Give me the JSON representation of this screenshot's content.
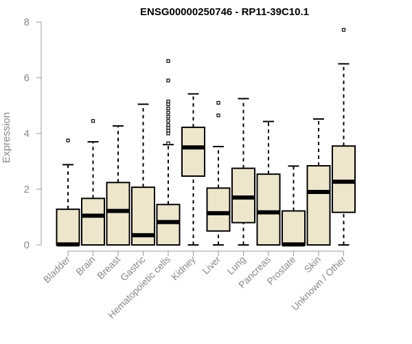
{
  "chart_data": {
    "type": "boxplot",
    "title": "ENSG00000250746 - RP11-39C10.1",
    "ylabel": "Expression",
    "xlabel": "",
    "ylim": [
      0,
      8
    ],
    "yticks": [
      0,
      2,
      4,
      6,
      8
    ],
    "box_fill": "#ede6cc",
    "categories": [
      "Bladder",
      "Brain",
      "Breast",
      "Gastric",
      "Hematopoietic cells",
      "Kidney",
      "Liver",
      "Lung",
      "Pancreas",
      "Prostate",
      "Skin",
      "Unknown / Other"
    ],
    "boxes": [
      {
        "whislo": 0,
        "q1": 0,
        "med": 0.02,
        "q3": 1.28,
        "whishi": 2.88,
        "fliers": [
          3.75
        ]
      },
      {
        "whislo": 0,
        "q1": 0,
        "med": 1.05,
        "q3": 1.67,
        "whishi": 3.7,
        "fliers": [
          4.45
        ]
      },
      {
        "whislo": 0,
        "q1": 0,
        "med": 1.22,
        "q3": 2.24,
        "whishi": 4.27,
        "fliers": []
      },
      {
        "whislo": 0,
        "q1": 0,
        "med": 0.35,
        "q3": 2.07,
        "whishi": 5.05,
        "fliers": []
      },
      {
        "whislo": 0,
        "q1": 0,
        "med": 0.82,
        "q3": 1.45,
        "whishi": 3.6,
        "fliers": [
          3.65,
          4.0,
          4.1,
          4.2,
          4.3,
          4.45,
          4.6,
          4.75,
          4.9,
          5.05,
          5.15,
          5.9,
          6.6
        ]
      },
      {
        "whislo": 0,
        "q1": 2.47,
        "med": 3.5,
        "q3": 4.22,
        "whishi": 5.42,
        "fliers": []
      },
      {
        "whislo": 0,
        "q1": 0.5,
        "med": 1.14,
        "q3": 2.04,
        "whishi": 3.53,
        "fliers": [
          4.65,
          5.1
        ]
      },
      {
        "whislo": 0,
        "q1": 0.8,
        "med": 1.7,
        "q3": 2.75,
        "whishi": 5.25,
        "fliers": []
      },
      {
        "whislo": 0,
        "q1": 0,
        "med": 1.17,
        "q3": 2.54,
        "whishi": 4.43,
        "fliers": []
      },
      {
        "whislo": 0,
        "q1": 0,
        "med": 0.02,
        "q3": 1.22,
        "whishi": 2.83,
        "fliers": []
      },
      {
        "whislo": 0,
        "q1": 0,
        "med": 1.9,
        "q3": 2.84,
        "whishi": 4.52,
        "fliers": []
      },
      {
        "whislo": 0,
        "q1": 1.17,
        "med": 2.27,
        "q3": 3.55,
        "whishi": 6.5,
        "fliers": [
          7.72
        ]
      }
    ],
    "grid": false,
    "legend": "none"
  }
}
